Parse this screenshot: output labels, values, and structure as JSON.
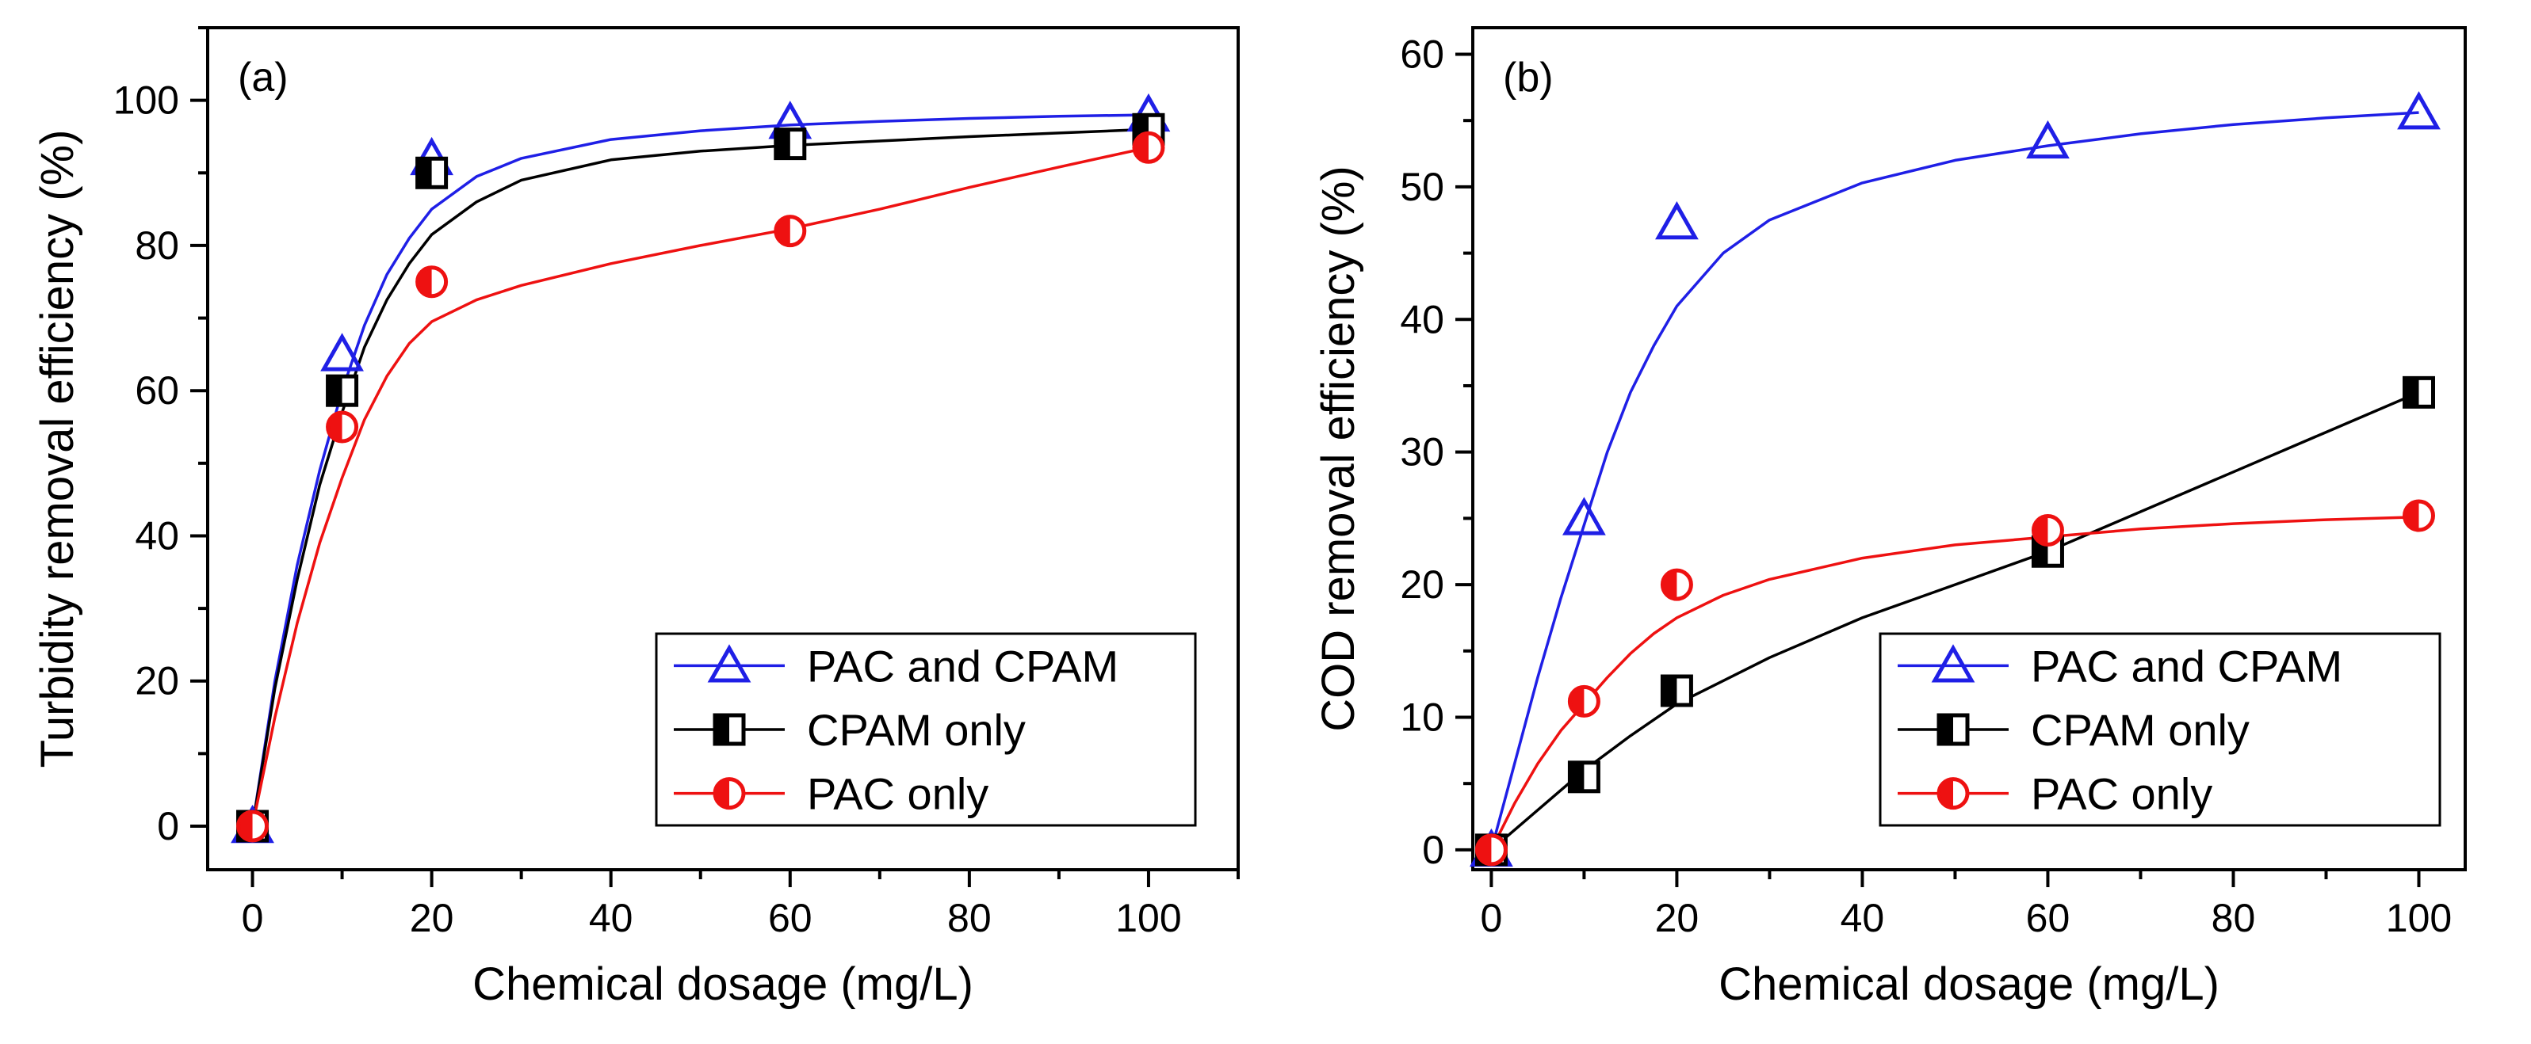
{
  "figure": {
    "colors": {
      "blue": "#1f1fe6",
      "black": "#000000",
      "red": "#ee1111"
    },
    "markers": {
      "PAC and CPAM": "triangle",
      "CPAM only": "half-square",
      "PAC only": "half-circle"
    }
  },
  "chart_data": [
    {
      "type": "scatter",
      "panel_label": "(a)",
      "xlabel": "Chemical dosage (mg/L)",
      "ylabel": "Turbidity removal efficiency (%)",
      "xlim": [
        -5,
        110
      ],
      "ylim": [
        -6,
        110
      ],
      "xticks": [
        0,
        20,
        40,
        60,
        80,
        100
      ],
      "yticks": [
        0,
        20,
        40,
        60,
        80,
        100
      ],
      "legend_position": "bottom-right",
      "series": [
        {
          "name": "PAC and CPAM",
          "color": "#1f1fe6",
          "marker": "triangle",
          "points": [
            [
              0,
              0
            ],
            [
              10,
              65
            ],
            [
              20,
              92
            ],
            [
              60,
              97
            ],
            [
              100,
              98
            ]
          ],
          "fit": [
            [
              0,
              0
            ],
            [
              2.5,
              20
            ],
            [
              5,
              36
            ],
            [
              7.5,
              49
            ],
            [
              10,
              60
            ],
            [
              12.5,
              69
            ],
            [
              15,
              76
            ],
            [
              17.5,
              81
            ],
            [
              20,
              85
            ],
            [
              25,
              89.5
            ],
            [
              30,
              92
            ],
            [
              40,
              94.6
            ],
            [
              50,
              95.8
            ],
            [
              60,
              96.6
            ],
            [
              70,
              97.1
            ],
            [
              80,
              97.5
            ],
            [
              90,
              97.8
            ],
            [
              100,
              98
            ]
          ]
        },
        {
          "name": "CPAM only",
          "color": "#000000",
          "marker": "half-square",
          "points": [
            [
              0,
              0
            ],
            [
              10,
              60
            ],
            [
              20,
              90
            ],
            [
              60,
              94
            ],
            [
              100,
              96
            ]
          ],
          "fit": [
            [
              0,
              0
            ],
            [
              2.5,
              19
            ],
            [
              5,
              34
            ],
            [
              7.5,
              47
            ],
            [
              10,
              57
            ],
            [
              12.5,
              66
            ],
            [
              15,
              72.5
            ],
            [
              17.5,
              77.5
            ],
            [
              20,
              81.5
            ],
            [
              25,
              86
            ],
            [
              30,
              89
            ],
            [
              40,
              91.8
            ],
            [
              50,
              93
            ],
            [
              60,
              93.8
            ],
            [
              70,
              94.4
            ],
            [
              80,
              95
            ],
            [
              90,
              95.5
            ],
            [
              100,
              96
            ]
          ]
        },
        {
          "name": "PAC only",
          "color": "#ee1111",
          "marker": "half-circle",
          "points": [
            [
              0,
              0
            ],
            [
              10,
              55
            ],
            [
              20,
              75
            ],
            [
              60,
              82
            ],
            [
              100,
              93.5
            ]
          ],
          "fit": [
            [
              0,
              0
            ],
            [
              2.5,
              15
            ],
            [
              5,
              28
            ],
            [
              7.5,
              39
            ],
            [
              10,
              48
            ],
            [
              12.5,
              56
            ],
            [
              15,
              62
            ],
            [
              17.5,
              66.5
            ],
            [
              20,
              69.5
            ],
            [
              25,
              72.5
            ],
            [
              30,
              74.5
            ],
            [
              40,
              77.5
            ],
            [
              50,
              80
            ],
            [
              60,
              82.3
            ],
            [
              70,
              85
            ],
            [
              80,
              88
            ],
            [
              90,
              90.8
            ],
            [
              100,
              93.5
            ]
          ]
        }
      ]
    },
    {
      "type": "scatter",
      "panel_label": "(b)",
      "xlabel": "Chemical dosage (mg/L)",
      "ylabel": "COD removal efficiency (%)",
      "xlim": [
        -2,
        105
      ],
      "ylim": [
        -1.5,
        62
      ],
      "xticks": [
        0,
        20,
        40,
        60,
        80,
        100
      ],
      "yticks": [
        0,
        10,
        20,
        30,
        40,
        50,
        60
      ],
      "legend_position": "bottom-right",
      "series": [
        {
          "name": "PAC and CPAM",
          "color": "#1f1fe6",
          "marker": "triangle",
          "points": [
            [
              0,
              0
            ],
            [
              10,
              25
            ],
            [
              20,
              47.3
            ],
            [
              60,
              53.4
            ],
            [
              100,
              55.6
            ]
          ],
          "fit": [
            [
              0,
              0
            ],
            [
              2.5,
              6.5
            ],
            [
              5,
              13
            ],
            [
              7.5,
              19
            ],
            [
              10,
              24.5
            ],
            [
              12.5,
              30
            ],
            [
              15,
              34.5
            ],
            [
              17.5,
              38
            ],
            [
              20,
              41
            ],
            [
              25,
              45
            ],
            [
              30,
              47.5
            ],
            [
              40,
              50.3
            ],
            [
              50,
              52
            ],
            [
              60,
              53.1
            ],
            [
              70,
              54
            ],
            [
              80,
              54.7
            ],
            [
              90,
              55.2
            ],
            [
              100,
              55.6
            ]
          ]
        },
        {
          "name": "CPAM only",
          "color": "#000000",
          "marker": "half-square",
          "points": [
            [
              0,
              0
            ],
            [
              10,
              5.5
            ],
            [
              20,
              12
            ],
            [
              60,
              22.5
            ],
            [
              100,
              34.5
            ]
          ],
          "fit": [
            [
              0,
              0
            ],
            [
              5,
              3
            ],
            [
              10,
              6
            ],
            [
              15,
              8.6
            ],
            [
              20,
              11
            ],
            [
              30,
              14.5
            ],
            [
              40,
              17.5
            ],
            [
              50,
              20
            ],
            [
              60,
              22.5
            ],
            [
              70,
              25.5
            ],
            [
              80,
              28.5
            ],
            [
              90,
              31.5
            ],
            [
              100,
              34.5
            ]
          ]
        },
        {
          "name": "PAC only",
          "color": "#ee1111",
          "marker": "half-circle",
          "points": [
            [
              0,
              0
            ],
            [
              10,
              11.2
            ],
            [
              20,
              20
            ],
            [
              60,
              24.1
            ],
            [
              100,
              25.2
            ]
          ],
          "fit": [
            [
              0,
              0
            ],
            [
              2.5,
              3.5
            ],
            [
              5,
              6.5
            ],
            [
              7.5,
              9
            ],
            [
              10,
              11
            ],
            [
              12.5,
              13
            ],
            [
              15,
              14.8
            ],
            [
              17.5,
              16.3
            ],
            [
              20,
              17.5
            ],
            [
              25,
              19.2
            ],
            [
              30,
              20.4
            ],
            [
              40,
              22
            ],
            [
              50,
              23
            ],
            [
              60,
              23.6
            ],
            [
              70,
              24.2
            ],
            [
              80,
              24.6
            ],
            [
              90,
              24.9
            ],
            [
              100,
              25.1
            ]
          ]
        }
      ]
    }
  ]
}
